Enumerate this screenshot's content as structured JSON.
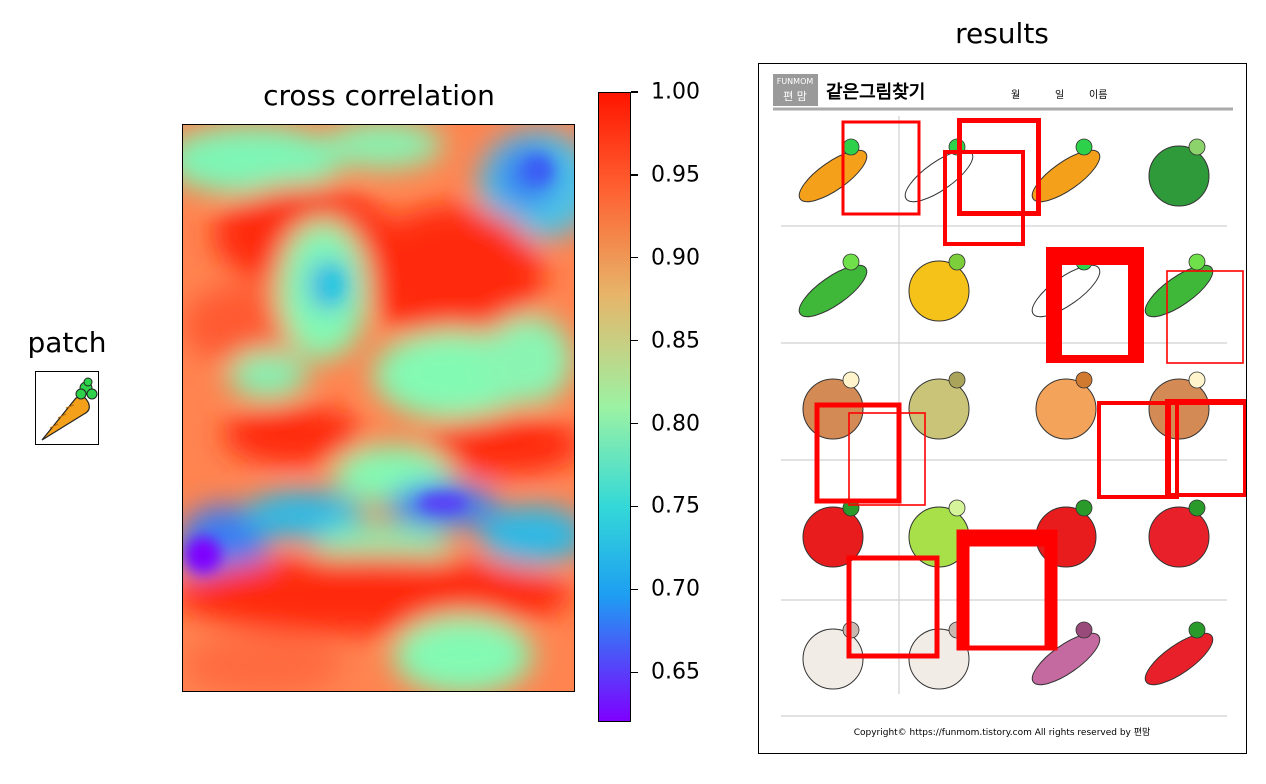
{
  "panels": {
    "patch": {
      "title": "patch",
      "icon": "carrot-icon"
    },
    "cross_correlation": {
      "title": "cross correlation"
    },
    "results": {
      "title": "results"
    }
  },
  "colorbar": {
    "ticks": [
      "1.00",
      "0.95",
      "0.90",
      "0.85",
      "0.80",
      "0.75",
      "0.70",
      "0.65"
    ],
    "colormap": "rainbow",
    "colors": {
      "max": "#ff1500",
      "high": "#ff8a4a",
      "mid_high": "#d3d27a",
      "mid": "#83fab3",
      "mid_low": "#1ecbe0",
      "low": "#3a7df2",
      "min": "#7f00ff"
    }
  },
  "chart_data": [
    {
      "type": "heatmap",
      "title": "cross correlation",
      "colormap": "rainbow",
      "value_range": [
        0.62,
        1.0
      ],
      "colorbar_ticks": [
        1.0,
        0.95,
        0.9,
        0.85,
        0.8,
        0.75,
        0.7,
        0.65
      ],
      "axes_visible": false
    }
  ],
  "worksheet": {
    "brand_line1": "FUNMOM",
    "brand_line2": "편 맘",
    "title": "같은그림찾기",
    "field_month": "월",
    "field_day": "일",
    "field_name": "이름",
    "footer": "Copyright© https://funmom.tistory.com    All rights reserved by 편맘",
    "rows": [
      [
        "carrot-icon",
        "radish-icon",
        "carrot-icon",
        "broccoli-icon"
      ],
      [
        "peas-icon",
        "corn-icon",
        "radish-icon",
        "peas-icon"
      ],
      [
        "mushroom-icon",
        "potato-icon",
        "onion-icon",
        "mushroom-icon"
      ],
      [
        "tomato-icon",
        "cabbage-icon",
        "tomato-icon",
        "pepper-icon"
      ],
      [
        "garlic-icon",
        "garlic-icon",
        "sweet-potato-icon",
        "chili-icon"
      ]
    ],
    "match_box_color": "#ff0000"
  }
}
